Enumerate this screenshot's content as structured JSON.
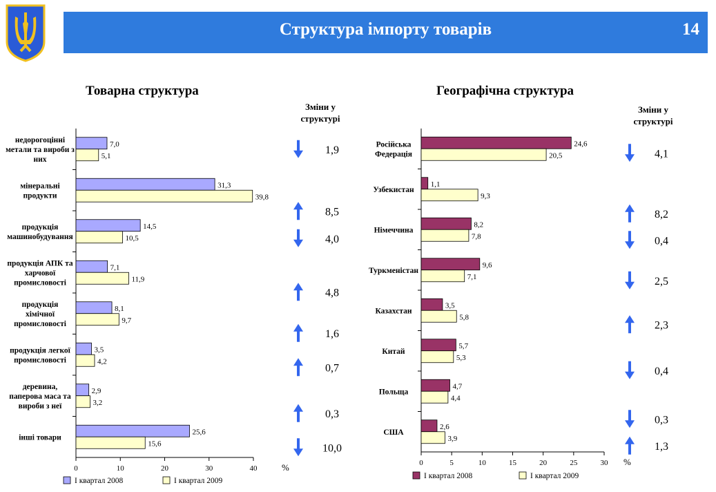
{
  "header": {
    "title": "Структура імпорту товарів",
    "page_number": "14",
    "bg_color": "#2f7bdd"
  },
  "left": {
    "title": "Товарна структура",
    "changes_header": "Зміни у структурі",
    "unit": "%",
    "legend": [
      "I квартал 2008",
      "I квартал 2009"
    ],
    "colors": [
      "#a9a9ff",
      "#ffffcc"
    ],
    "changes": [
      {
        "value": "1,9",
        "dir": "down"
      },
      {
        "value": "8,5",
        "dir": "up"
      },
      {
        "value": "4,0",
        "dir": "down"
      },
      {
        "value": "4,8",
        "dir": "up"
      },
      {
        "value": "1,6",
        "dir": "up"
      },
      {
        "value": "0,7",
        "dir": "up"
      },
      {
        "value": "0,3",
        "dir": "up"
      },
      {
        "value": "10,0",
        "dir": "down"
      }
    ]
  },
  "right": {
    "title": "Географічна структура",
    "changes_header": "Зміни у структурі",
    "unit": "%",
    "legend": [
      "I квартал 2008",
      "I квартал 2009"
    ],
    "colors": [
      "#993366",
      "#ffffcc"
    ],
    "changes": [
      {
        "value": "4,1",
        "dir": "down"
      },
      {
        "value": "8,2",
        "dir": "up"
      },
      {
        "value": "0,4",
        "dir": "down"
      },
      {
        "value": "2,5",
        "dir": "down"
      },
      {
        "value": "2,3",
        "dir": "up"
      },
      {
        "value": "0,4",
        "dir": "down"
      },
      {
        "value": "0,3",
        "dir": "down"
      },
      {
        "value": "1,3",
        "dir": "up"
      }
    ]
  },
  "arrow_color": "#3366ee",
  "chart_data": [
    {
      "type": "bar",
      "orientation": "horizontal",
      "title": "Товарна структура",
      "categories": [
        "недорогоцінні метали та вироби з них",
        "мінеральні продукти",
        "продукція машинобудування",
        "продукція АПК та харчової промисловості",
        "продукція хімічної промисловості",
        "продукція легкої промисловості",
        "деревина, паперова маса та вироби з неї",
        "інші товари"
      ],
      "series": [
        {
          "name": "I квартал 2008",
          "values": [
            7.0,
            31.3,
            14.5,
            7.1,
            8.1,
            3.5,
            2.9,
            25.6
          ],
          "labels": [
            "7,0",
            "31,3",
            "14,5",
            "7,1",
            "8,1",
            "3,5",
            "2,9",
            "25,6"
          ]
        },
        {
          "name": "I квартал 2009",
          "values": [
            5.1,
            39.8,
            10.5,
            11.9,
            9.7,
            4.2,
            3.2,
            15.6
          ],
          "labels": [
            "5,1",
            "39,8",
            "10,5",
            "11,9",
            "9,7",
            "4,2",
            "3,2",
            "15,6"
          ]
        }
      ],
      "xlim": [
        0,
        40
      ],
      "ticks": [
        0,
        10,
        20,
        30,
        40
      ],
      "xlabel": "%"
    },
    {
      "type": "bar",
      "orientation": "horizontal",
      "title": "Географічна структура",
      "categories": [
        "Російська Федерація",
        "Узбекистан",
        "Німеччина",
        "Туркменістан",
        "Казахстан",
        "Китай",
        "Польща",
        "США"
      ],
      "series": [
        {
          "name": "I квартал 2008",
          "values": [
            24.6,
            1.1,
            8.2,
            9.6,
            3.5,
            5.7,
            4.7,
            2.6
          ],
          "labels": [
            "24,6",
            "1,1",
            "8,2",
            "9,6",
            "3,5",
            "5,7",
            "4,7",
            "2,6"
          ]
        },
        {
          "name": "I квартал 2009",
          "values": [
            20.5,
            9.3,
            7.8,
            7.1,
            5.8,
            5.3,
            4.4,
            3.9
          ],
          "labels": [
            "20,5",
            "9,3",
            "7,8",
            "7,1",
            "5,8",
            "5,3",
            "4,4",
            "3,9"
          ]
        }
      ],
      "xlim": [
        0,
        30
      ],
      "ticks": [
        0,
        5,
        10,
        15,
        20,
        25,
        30
      ],
      "xlabel": "%"
    }
  ]
}
